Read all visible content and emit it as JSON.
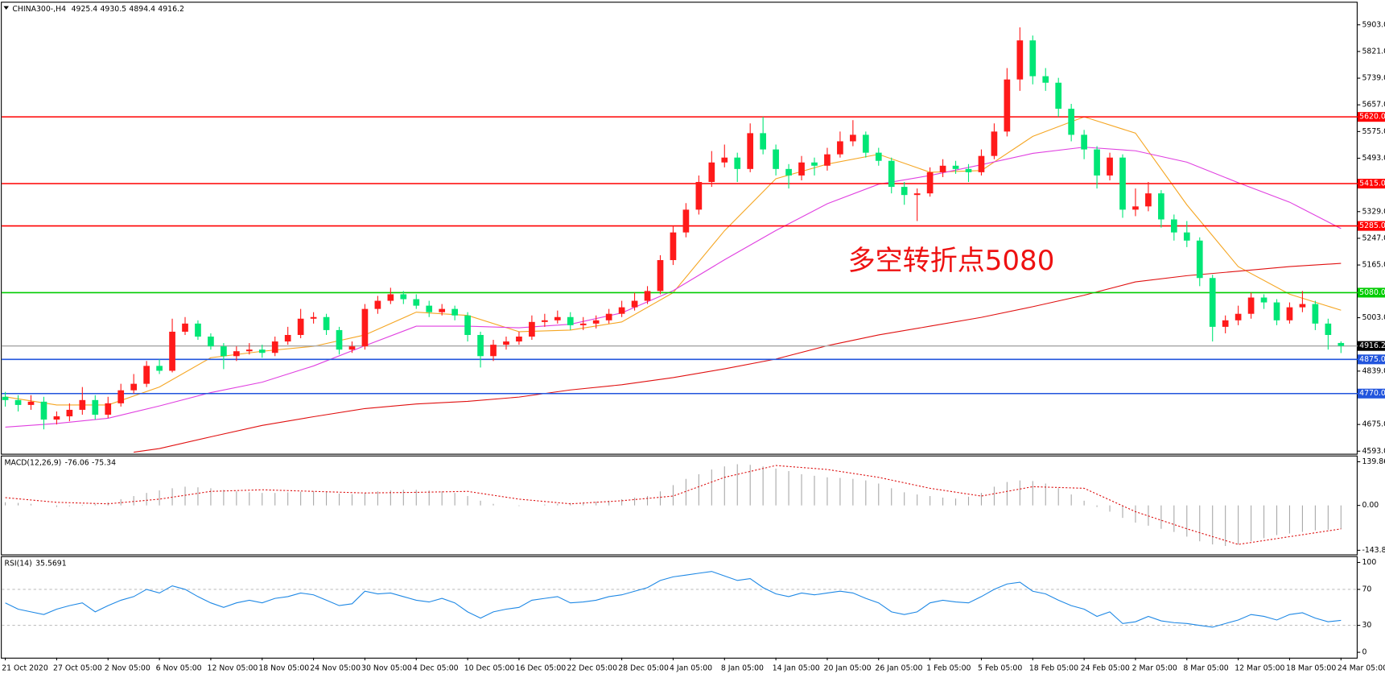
{
  "chart_data": [
    {
      "type": "candlestick",
      "title": "CHINA300-,H4",
      "categories": [
        "21 Oct 2020",
        null,
        null,
        null,
        "27 Oct 05:00",
        null,
        null,
        null,
        "2 Nov 05:00",
        null,
        null,
        null,
        "6 Nov 05:00",
        null,
        null,
        null,
        "12 Nov 05:00",
        null,
        null,
        null,
        "18 Nov 05:00",
        null,
        null,
        null,
        "24 Nov 05:00",
        null,
        null,
        null,
        "30 Nov 05:00",
        null,
        null,
        null,
        "4 Dec 05:00",
        null,
        null,
        null,
        "10 Dec 05:00",
        null,
        null,
        null,
        "16 Dec 05:00",
        null,
        null,
        null,
        "22 Dec 05:00",
        null,
        null,
        null,
        "28 Dec 05:00",
        null,
        null,
        null,
        "4 Jan 05:00",
        null,
        null,
        null,
        "8 Jan 05:00",
        null,
        null,
        null,
        "14 Jan 05:00",
        null,
        null,
        null,
        "20 Jan 05:00",
        null,
        null,
        null,
        "26 Jan 05:00",
        null,
        null,
        null,
        "1 Feb 05:00",
        null,
        null,
        null,
        "5 Feb 05:00",
        null,
        null,
        null,
        "18 Feb 05:00",
        null,
        null,
        null,
        "24 Feb 05:00",
        null,
        null,
        null,
        "2 Mar 05:00",
        null,
        null,
        null,
        "8 Mar 05:00",
        null,
        null,
        null,
        "12 Mar 05:00",
        null,
        null,
        null,
        "18 Mar 05:00",
        null,
        null,
        null,
        "24 Mar 05:00"
      ],
      "open": [
        4760,
        4750,
        4735,
        4745,
        4690,
        4700,
        4720,
        4750,
        4705,
        4740,
        4780,
        4800,
        4855,
        4840,
        4960,
        4985,
        4945,
        4915,
        4885,
        4900,
        4905,
        4895,
        4930,
        4950,
        5000,
        5005,
        4965,
        4905,
        4915,
        5030,
        5055,
        5075,
        5060,
        5040,
        5020,
        5030,
        5010,
        4950,
        4885,
        4920,
        4930,
        4945,
        4990,
        4995,
        5005,
        4980,
        4985,
        4995,
        5015,
        5035,
        5055,
        5085,
        5180,
        5265,
        5335,
        5420,
        5480,
        5495,
        5460,
        5570,
        5520,
        5460,
        5440,
        5480,
        5470,
        5505,
        5545,
        5565,
        5510,
        5485,
        5405,
        5380,
        5385,
        5450,
        5470,
        5460,
        5450,
        5500,
        5575,
        5735,
        5855,
        5745,
        5725,
        5645,
        5565,
        5520,
        5440,
        5495,
        5335,
        5345,
        5385,
        5305,
        5265,
        5240,
        5125,
        4975,
        4995,
        5015,
        5065,
        5050,
        4995,
        5035,
        5045,
        4985,
        4925.4
      ],
      "high": [
        4775,
        4765,
        4765,
        4760,
        4715,
        4740,
        4790,
        4765,
        4760,
        4800,
        4830,
        4870,
        4875,
        5000,
        5005,
        4995,
        4955,
        4925,
        4915,
        4925,
        4920,
        4945,
        4975,
        5030,
        5020,
        5015,
        4975,
        4930,
        5045,
        5070,
        5095,
        5085,
        5075,
        5055,
        5045,
        5040,
        5020,
        4960,
        4935,
        4945,
        4960,
        5010,
        5015,
        5025,
        5020,
        5005,
        5010,
        5030,
        5055,
        5080,
        5100,
        5195,
        5285,
        5355,
        5440,
        5515,
        5535,
        5510,
        5600,
        5620,
        5535,
        5475,
        5500,
        5495,
        5525,
        5575,
        5610,
        5575,
        5525,
        5495,
        5420,
        5400,
        5465,
        5490,
        5485,
        5475,
        5520,
        5600,
        5770,
        5895,
        5870,
        5770,
        5740,
        5660,
        5580,
        5530,
        5510,
        5505,
        5400,
        5420,
        5395,
        5320,
        5300,
        5250,
        5135,
        5010,
        5040,
        5080,
        5075,
        5060,
        5050,
        5085,
        5055,
        5000,
        4930.5
      ],
      "low": [
        4730,
        4715,
        4720,
        4660,
        4675,
        4685,
        4705,
        4690,
        4695,
        4730,
        4770,
        4790,
        4830,
        4835,
        4950,
        4935,
        4905,
        4845,
        4870,
        4890,
        4880,
        4885,
        4920,
        4940,
        4985,
        4950,
        4890,
        4895,
        4905,
        5015,
        5045,
        5045,
        5030,
        5005,
        5010,
        4995,
        4930,
        4850,
        4870,
        4905,
        4920,
        4935,
        4975,
        4985,
        4965,
        4965,
        4970,
        4985,
        5005,
        5025,
        5045,
        5075,
        5165,
        5250,
        5320,
        5405,
        5465,
        5420,
        5450,
        5505,
        5440,
        5400,
        5425,
        5440,
        5455,
        5495,
        5530,
        5495,
        5470,
        5385,
        5350,
        5300,
        5375,
        5435,
        5445,
        5420,
        5440,
        5490,
        5560,
        5700,
        5720,
        5700,
        5620,
        5545,
        5490,
        5400,
        5425,
        5310,
        5315,
        5330,
        5280,
        5240,
        5220,
        5100,
        4930,
        4955,
        4980,
        5000,
        5030,
        4980,
        4985,
        5020,
        4965,
        4905,
        4894.4
      ],
      "close": [
        4750,
        4735,
        4745,
        4690,
        4700,
        4720,
        4750,
        4705,
        4740,
        4780,
        4800,
        4855,
        4840,
        4960,
        4985,
        4945,
        4915,
        4885,
        4900,
        4905,
        4895,
        4930,
        4950,
        5000,
        5005,
        4965,
        4905,
        4915,
        5030,
        5055,
        5075,
        5060,
        5040,
        5020,
        5030,
        5010,
        4950,
        4885,
        4920,
        4930,
        4945,
        4990,
        4995,
        5005,
        4980,
        4985,
        4995,
        5015,
        5035,
        5055,
        5085,
        5180,
        5265,
        5335,
        5420,
        5480,
        5495,
        5460,
        5570,
        5520,
        5460,
        5440,
        5480,
        5470,
        5505,
        5545,
        5565,
        5510,
        5485,
        5405,
        5380,
        5385,
        5450,
        5470,
        5460,
        5450,
        5500,
        5575,
        5735,
        5855,
        5745,
        5725,
        5645,
        5565,
        5520,
        5440,
        5495,
        5335,
        5345,
        5385,
        5305,
        5265,
        5240,
        5125,
        4975,
        4995,
        5015,
        5065,
        5050,
        4995,
        5035,
        5045,
        4985,
        4950,
        4916.2
      ],
      "up_color": "#ff1a1a",
      "down_color": "#00e676",
      "ylim": [
        4585,
        5971
      ],
      "yticks": [
        {
          "value": 5903,
          "label": "5903.0"
        },
        {
          "value": 5821,
          "label": "5821.0"
        },
        {
          "value": 5739,
          "label": "5739.0"
        },
        {
          "value": 5657,
          "label": "5657.0"
        },
        {
          "value": 5575,
          "label": "5575.0"
        },
        {
          "value": 5493,
          "label": "5493.0"
        },
        {
          "value": 5329,
          "label": "5329.0"
        },
        {
          "value": 5247,
          "label": "5247.0"
        },
        {
          "value": 5165,
          "label": "5165.0"
        },
        {
          "value": 5003,
          "label": "5003.0"
        },
        {
          "value": 4839,
          "label": "4839.0"
        },
        {
          "value": 4675,
          "label": "4675.0"
        },
        {
          "value": 4593,
          "label": "4593.0"
        }
      ],
      "lines": [
        {
          "value": 5620,
          "label": "5620.0",
          "color": "#ff0000"
        },
        {
          "value": 5415,
          "label": "5415.0",
          "color": "#ff0000"
        },
        {
          "value": 5285,
          "label": "5285.0",
          "color": "#ff0000"
        },
        {
          "value": 5080,
          "label": "5080.0",
          "color": "#00cc00"
        },
        {
          "value": 4916.2,
          "label": "4916.2",
          "color": "#000000"
        },
        {
          "value": 4875,
          "label": "4875.0",
          "color": "#2255dd"
        },
        {
          "value": 4770,
          "label": "4770.0",
          "color": "#2255dd"
        }
      ],
      "series": [
        {
          "color": "#f5a623",
          "x": [
            0,
            4,
            8,
            12,
            16,
            20,
            24,
            28,
            32,
            36,
            40,
            44,
            48,
            52,
            56,
            60,
            64,
            68,
            72,
            76,
            80,
            84,
            88,
            92,
            96,
            100,
            104
          ],
          "values": [
            4760,
            4735,
            4735,
            4790,
            4880,
            4900,
            4915,
            4950,
            5020,
            5010,
            4960,
            4965,
            4990,
            5080,
            5270,
            5430,
            5475,
            5505,
            5450,
            5455,
            5560,
            5620,
            5570,
            5350,
            5160,
            5075,
            5026
          ]
        },
        {
          "color": "#e040e0",
          "x": [
            0,
            4,
            8,
            12,
            16,
            20,
            24,
            28,
            32,
            36,
            40,
            44,
            48,
            52,
            56,
            60,
            64,
            68,
            72,
            76,
            80,
            84,
            88,
            92,
            96,
            100,
            104
          ],
          "values": [
            4667,
            4678,
            4694,
            4732,
            4773,
            4805,
            4855,
            4917,
            4977,
            4977,
            4972,
            4983,
            5018,
            5086,
            5181,
            5271,
            5353,
            5413,
            5440,
            5473,
            5508,
            5527,
            5516,
            5481,
            5418,
            5358,
            5277
          ]
        },
        {
          "color": "#e01010",
          "x": [
            10,
            12,
            16,
            20,
            24,
            28,
            32,
            36,
            40,
            44,
            48,
            52,
            56,
            60,
            64,
            68,
            72,
            76,
            80,
            84,
            88,
            92,
            96,
            100,
            104
          ],
          "values": [
            4590,
            4601,
            4637,
            4672,
            4699,
            4724,
            4738,
            4746,
            4759,
            4781,
            4797,
            4819,
            4846,
            4876,
            4917,
            4950,
            4977,
            5004,
            5037,
            5072,
            5113,
            5132,
            5146,
            5160,
            5170
          ]
        }
      ],
      "annotation": {
        "text": "多空转折点5080",
        "color": "#ee1111"
      }
    },
    {
      "type": "bar",
      "name": "MACD(12,26,9)",
      "values": [
        10,
        8,
        5,
        0,
        -5,
        -3,
        2,
        5,
        10,
        20,
        30,
        40,
        48,
        55,
        60,
        58,
        55,
        50,
        45,
        42,
        40,
        40,
        42,
        44,
        45,
        42,
        38,
        36,
        40,
        45,
        48,
        50,
        50,
        48,
        45,
        40,
        30,
        15,
        5,
        0,
        -2,
        0,
        3,
        5,
        8,
        10,
        12,
        15,
        20,
        25,
        30,
        45,
        65,
        85,
        100,
        115,
        125,
        132,
        130,
        125,
        118,
        110,
        100,
        95,
        90,
        88,
        85,
        80,
        70,
        55,
        42,
        35,
        30,
        25,
        22,
        28,
        40,
        60,
        75,
        80,
        78,
        70,
        55,
        35,
        15,
        -5,
        -20,
        -40,
        -55,
        -65,
        -75,
        -85,
        -100,
        -115,
        -125,
        -130,
        -125,
        -115,
        -105,
        -95,
        -90,
        -85,
        -80,
        -78,
        -76.06
      ],
      "color": "#a8a8a8",
      "signal": {
        "color": "#dd1111",
        "x": [
          0,
          4,
          8,
          12,
          16,
          20,
          24,
          28,
          32,
          36,
          40,
          44,
          48,
          52,
          56,
          60,
          64,
          68,
          72,
          76,
          80,
          84,
          88,
          92,
          96,
          100,
          104
        ],
        "values": [
          25,
          10,
          5,
          20,
          45,
          50,
          45,
          40,
          42,
          45,
          20,
          5,
          15,
          30,
          90,
          128,
          115,
          90,
          55,
          30,
          60,
          55,
          -20,
          -75,
          -125,
          -100,
          -75.34
        ]
      },
      "ylim": [
        -157,
        157
      ],
      "yticks": [
        139.86,
        {
          "value": 0,
          "label": "0.00"
        },
        -143.82
      ]
    },
    {
      "type": "line",
      "name": "RSI(14)",
      "values": [
        55,
        48,
        45,
        42,
        48,
        52,
        55,
        45,
        52,
        58,
        62,
        70,
        66,
        74,
        70,
        62,
        55,
        50,
        55,
        58,
        55,
        60,
        62,
        66,
        64,
        58,
        52,
        54,
        68,
        65,
        66,
        62,
        58,
        56,
        60,
        55,
        45,
        38,
        45,
        48,
        50,
        58,
        60,
        62,
        55,
        56,
        58,
        62,
        64,
        68,
        72,
        80,
        84,
        86,
        88,
        90,
        85,
        80,
        82,
        72,
        65,
        62,
        66,
        64,
        66,
        68,
        66,
        60,
        55,
        45,
        42,
        45,
        55,
        58,
        56,
        55,
        62,
        70,
        76,
        78,
        68,
        65,
        58,
        52,
        48,
        40,
        45,
        32,
        34,
        40,
        35,
        33,
        32,
        30,
        28,
        32,
        36,
        42,
        40,
        36,
        42,
        44,
        38,
        34,
        35.5691
      ],
      "color": "#1e88e5",
      "ylim": [
        -6,
        106
      ],
      "yticks": [
        100,
        70,
        30,
        0
      ],
      "levels": [
        70,
        30
      ]
    }
  ]
}
